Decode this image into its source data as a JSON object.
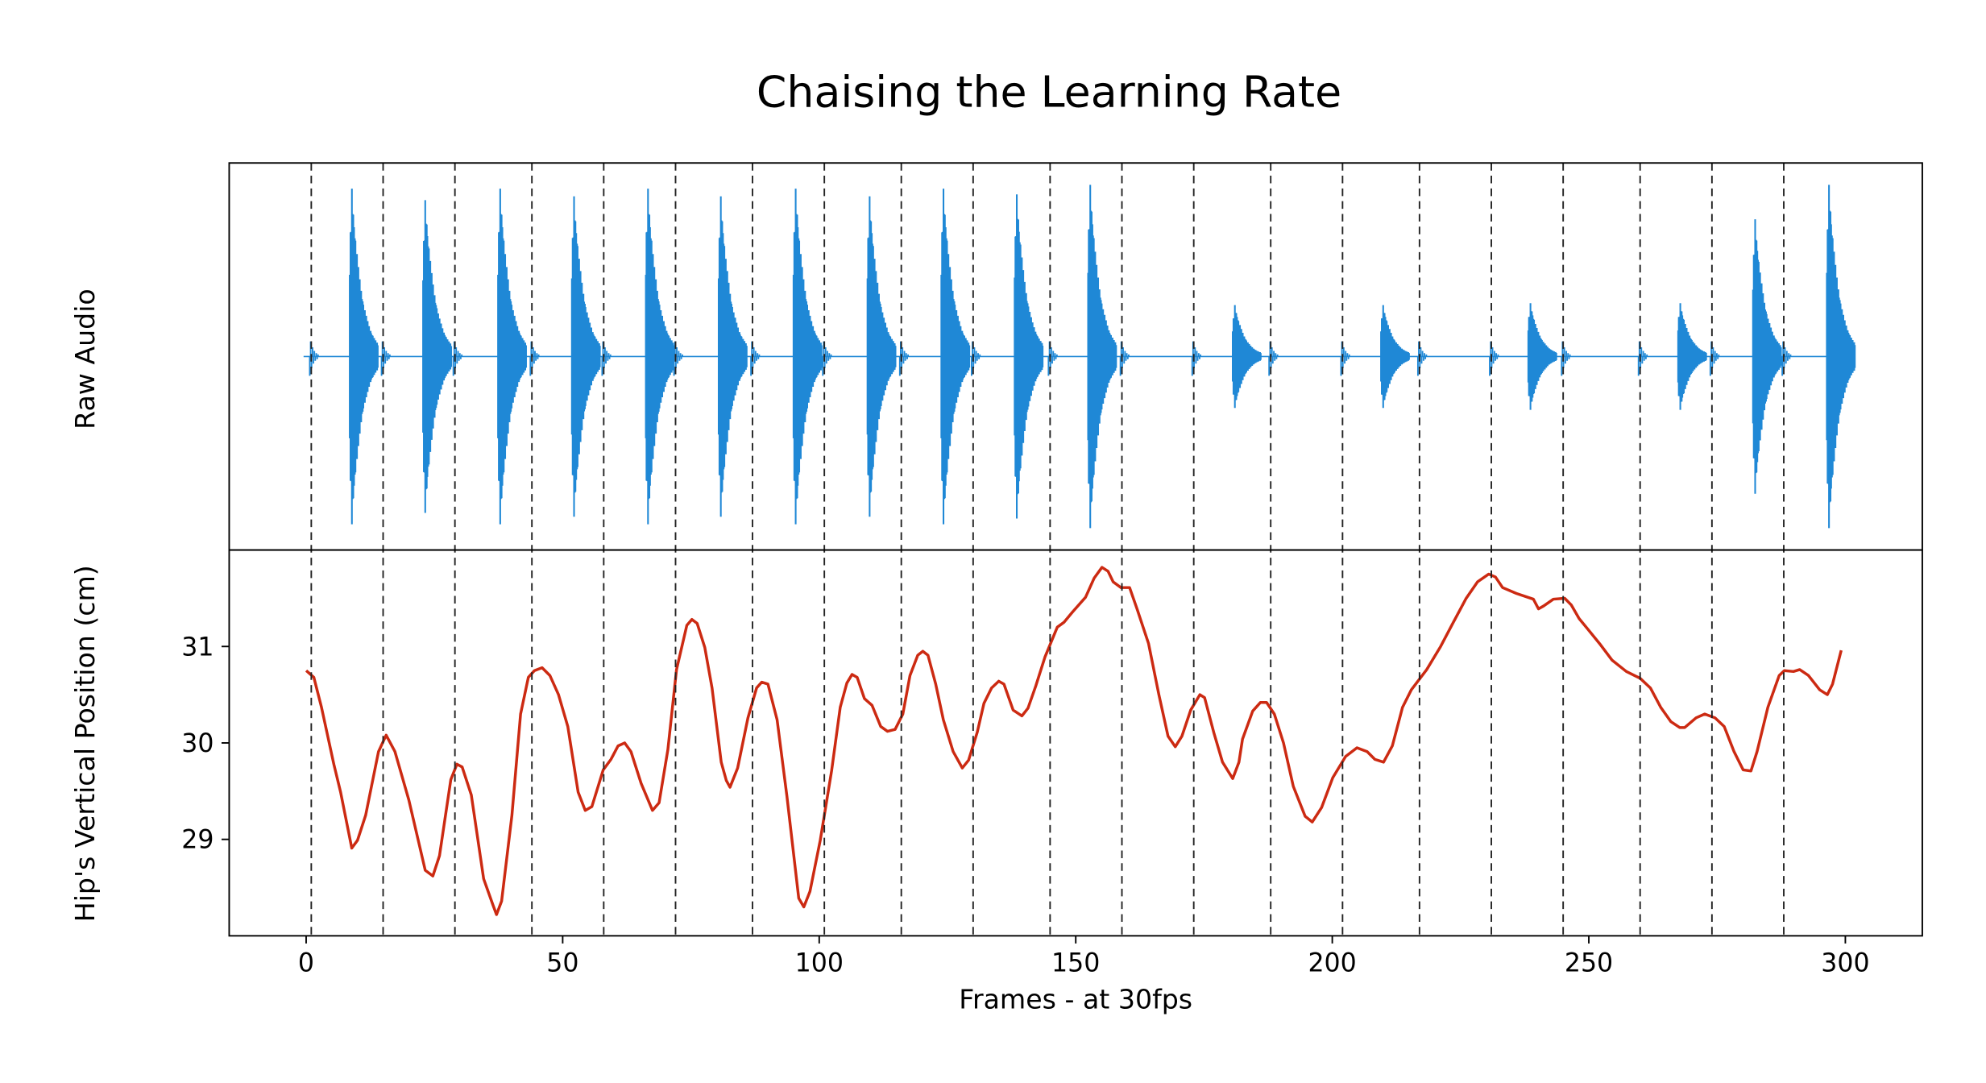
{
  "chart_data": {
    "type": "line",
    "title": "Chaising the Learning Rate",
    "xlabel": "Frames - at 30fps",
    "xlim": [
      -15,
      315
    ],
    "xticks": [
      0,
      50,
      100,
      150,
      200,
      250,
      300
    ],
    "panels": [
      {
        "name": "audio",
        "ylabel": "Raw Audio",
        "ylim": [
          -1,
          1
        ],
        "color": "#1f88d6",
        "bursts": [
          {
            "frame": 8.7,
            "amplitude": 0.88
          },
          {
            "frame": 23.0,
            "amplitude": 0.82
          },
          {
            "frame": 37.6,
            "amplitude": 0.88
          },
          {
            "frame": 52.0,
            "amplitude": 0.84
          },
          {
            "frame": 66.4,
            "amplitude": 0.88
          },
          {
            "frame": 80.6,
            "amplitude": 0.84
          },
          {
            "frame": 95.2,
            "amplitude": 0.88
          },
          {
            "frame": 109.6,
            "amplitude": 0.84
          },
          {
            "frame": 124.0,
            "amplitude": 0.88
          },
          {
            "frame": 138.3,
            "amplitude": 0.85
          },
          {
            "frame": 152.6,
            "amplitude": 0.9
          },
          {
            "frame": 180.8,
            "amplitude": 0.27
          },
          {
            "frame": 209.7,
            "amplitude": 0.27
          },
          {
            "frame": 238.4,
            "amplitude": 0.28
          },
          {
            "frame": 267.6,
            "amplitude": 0.28
          },
          {
            "frame": 282.2,
            "amplitude": 0.72
          },
          {
            "frame": 296.6,
            "amplitude": 0.9
          }
        ],
        "clicks_amplitude": 0.1
      },
      {
        "name": "hip",
        "ylabel": "Hip's Vertical Position (cm)",
        "ylim": [
          28.0,
          32.0
        ],
        "yticks": [
          29,
          30,
          31
        ],
        "color": "#cc2a12",
        "x": [
          0,
          1.5,
          3,
          5.4,
          6.7,
          8.9,
          10,
          11.6,
          14.1,
          15.6,
          17.3,
          20,
          23.2,
          24.7,
          26,
          28.2,
          29.4,
          30.4,
          32.2,
          34.6,
          36.4,
          37.1,
          38.1,
          40.1,
          41.8,
          43.3,
          44.5,
          46,
          47.5,
          49.2,
          51,
          53,
          54.4,
          55.7,
          57.9,
          59.4,
          60.8,
          62.1,
          63.3,
          65.3,
          67.5,
          68.8,
          70.5,
          72.2,
          74.2,
          75.2,
          76.2,
          77.7,
          79.1,
          80.9,
          81.9,
          82.6,
          84.1,
          86.1,
          87.8,
          88.8,
          90,
          91.8,
          93.7,
          96,
          97,
          98.2,
          100.2,
          102.4,
          104.1,
          105.4,
          106.4,
          107.4,
          108.8,
          110.3,
          112,
          113.3,
          114.8,
          116.3,
          117.7,
          119.2,
          120.2,
          121.2,
          122.7,
          124.2,
          126.1,
          127.9,
          129.1,
          130.8,
          132.1,
          133.6,
          135,
          136,
          137.8,
          139.5,
          140.7,
          142.2,
          144,
          146.4,
          147.7,
          149.4,
          151.9,
          153.6,
          155.1,
          156.3,
          157.3,
          158.8,
          160.5,
          162,
          164.2,
          166.2,
          168,
          169.4,
          170.7,
          172.4,
          174.2,
          175.1,
          176.9,
          178.6,
          180.6,
          181.8,
          182.5,
          184.5,
          186,
          187.2,
          188.7,
          190.5,
          192.4,
          194.7,
          196.1,
          197.9,
          200.1,
          202.6,
          204.8,
          206.8,
          208.3,
          210,
          211.7,
          213.7,
          215.4,
          218.4,
          221.1,
          223.6,
          226.1,
          228.3,
          230.5,
          231.8,
          233.2,
          235.9,
          239.2,
          240.2,
          241.2,
          243.1,
          245.3,
          246.6,
          248.1,
          249.8,
          252.1,
          254.5,
          257.3,
          260,
          262,
          264,
          266,
          267.7,
          268.7,
          270.9,
          272.6,
          274.6,
          276.4,
          278.3,
          280.1,
          281.6,
          282.8,
          284.9,
          287.1,
          288.1,
          289.9,
          291.1,
          292.8,
          295,
          296.5,
          297.5,
          299.2
        ],
        "y": [
          30.75,
          30.68,
          30.37,
          29.78,
          29.49,
          28.91,
          28.99,
          29.25,
          29.91,
          30.08,
          29.91,
          29.41,
          28.68,
          28.62,
          28.83,
          29.62,
          29.78,
          29.75,
          29.46,
          28.59,
          28.32,
          28.22,
          28.36,
          29.25,
          30.3,
          30.68,
          30.75,
          30.78,
          30.7,
          30.5,
          30.17,
          29.49,
          29.3,
          29.34,
          29.72,
          29.83,
          29.97,
          30.0,
          29.91,
          29.58,
          29.3,
          29.38,
          29.93,
          30.76,
          31.22,
          31.28,
          31.24,
          30.99,
          30.57,
          29.8,
          29.61,
          29.54,
          29.74,
          30.26,
          30.57,
          30.63,
          30.61,
          30.24,
          29.45,
          28.39,
          28.3,
          28.46,
          28.99,
          29.71,
          30.37,
          30.62,
          30.71,
          30.68,
          30.46,
          30.39,
          30.17,
          30.12,
          30.14,
          30.3,
          30.7,
          30.91,
          30.95,
          30.91,
          30.61,
          30.24,
          29.91,
          29.74,
          29.82,
          30.11,
          30.41,
          30.57,
          30.64,
          30.61,
          30.34,
          30.28,
          30.36,
          30.59,
          30.89,
          31.2,
          31.25,
          31.36,
          31.51,
          31.71,
          31.82,
          31.78,
          31.67,
          31.61,
          31.61,
          31.38,
          31.03,
          30.5,
          30.07,
          29.96,
          30.07,
          30.34,
          30.5,
          30.47,
          30.11,
          29.8,
          29.63,
          29.8,
          30.04,
          30.33,
          30.42,
          30.42,
          30.3,
          30.0,
          29.55,
          29.24,
          29.18,
          29.33,
          29.64,
          29.86,
          29.95,
          29.91,
          29.83,
          29.8,
          29.97,
          30.37,
          30.55,
          30.76,
          31.0,
          31.25,
          31.5,
          31.67,
          31.75,
          31.72,
          31.61,
          31.55,
          31.49,
          31.39,
          31.42,
          31.49,
          31.5,
          31.43,
          31.29,
          31.18,
          31.03,
          30.86,
          30.74,
          30.67,
          30.57,
          30.37,
          30.22,
          30.16,
          30.16,
          30.26,
          30.3,
          30.26,
          30.17,
          29.91,
          29.72,
          29.71,
          29.91,
          30.37,
          30.7,
          30.75,
          30.74,
          30.76,
          30.7,
          30.55,
          30.5,
          30.61,
          30.96
        ]
      }
    ],
    "beat_lines": [
      1,
      15,
      29,
      44,
      58,
      72,
      87,
      101,
      116,
      130,
      145,
      159,
      173,
      188,
      202,
      217,
      231,
      245,
      260,
      274,
      288
    ],
    "grid": false,
    "legend": "none"
  }
}
